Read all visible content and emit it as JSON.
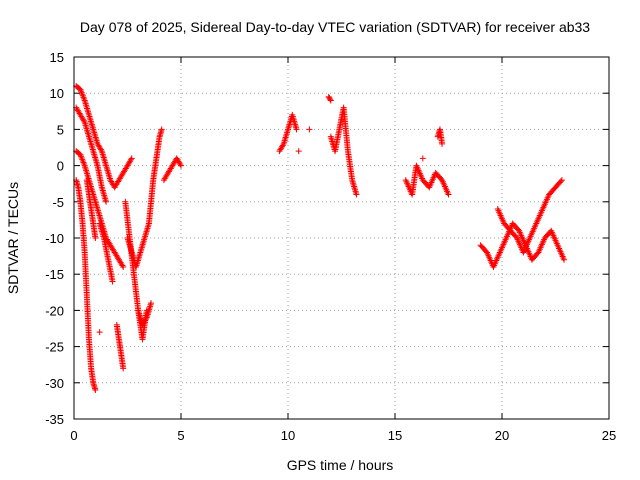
{
  "chart_data": {
    "type": "scatter",
    "title": "Day 078 of 2025, Sidereal Day-to-day VTEC variation (SDTVAR) for receiver ab33",
    "xlabel": "GPS time / hours",
    "ylabel": "SDTVAR / TECUs",
    "xlim": [
      0,
      25
    ],
    "ylim": [
      -35,
      15
    ],
    "xticks": [
      "0",
      "5",
      "10",
      "15",
      "20",
      "25"
    ],
    "yticks": [
      "15",
      "10",
      "5",
      "0",
      "-5",
      "-10",
      "-15",
      "-20",
      "-25",
      "-30",
      "-35"
    ],
    "grid": true,
    "marker": "+",
    "color": "#ff0000",
    "series": [
      {
        "name": "ab33",
        "tracks": [
          {
            "x": [
              0.1,
              0.3,
              0.5,
              0.7,
              0.9,
              1.1,
              1.3,
              1.5,
              1.7,
              1.9,
              2.1,
              2.3,
              2.5,
              2.7
            ],
            "y": [
              11,
              10.5,
              9,
              7,
              5,
              3,
              2,
              0,
              -2,
              -3,
              -2,
              -1,
              0,
              1
            ]
          },
          {
            "x": [
              0.1,
              0.3,
              0.5,
              0.7,
              0.9,
              1.1,
              1.3,
              1.5
            ],
            "y": [
              8,
              7,
              6,
              4,
              2,
              0,
              -3,
              -5
            ]
          },
          {
            "x": [
              0.1,
              0.3,
              0.5,
              0.7,
              0.9,
              1.1,
              1.3,
              1.5,
              1.7,
              1.9,
              2.1,
              2.3
            ],
            "y": [
              2,
              1.5,
              0,
              -2,
              -4,
              -6,
              -8,
              -10,
              -11,
              -12,
              -13,
              -14
            ]
          },
          {
            "x": [
              0.1,
              0.2,
              0.3,
              0.4,
              0.5,
              0.6,
              0.7,
              0.8,
              0.9,
              1.0
            ],
            "y": [
              -2,
              -3,
              -5,
              -8,
              -12,
              -18,
              -24,
              -28,
              -30,
              -31
            ]
          },
          {
            "x": [
              0.6,
              0.7,
              0.8,
              0.9,
              1.0
            ],
            "y": [
              -2,
              -4,
              -6,
              -8,
              -10
            ]
          },
          {
            "x": [
              1.2,
              1.4,
              1.6,
              1.8
            ],
            "y": [
              -8,
              -10,
              -13,
              -16
            ]
          },
          {
            "x": [
              1.2
            ],
            "y": [
              -23
            ]
          },
          {
            "x": [
              2.0,
              2.1,
              2.2,
              2.3
            ],
            "y": [
              -22,
              -24,
              -26,
              -28
            ]
          },
          {
            "x": [
              2.4,
              2.6,
              2.8,
              3.0,
              3.2,
              3.4
            ],
            "y": [
              -5,
              -10,
              -15,
              -20,
              -24,
              -20
            ]
          },
          {
            "x": [
              2.5,
              2.7,
              2.9,
              3.1,
              3.3,
              3.5
            ],
            "y": [
              -10,
              -12,
              -14,
              -12,
              -10,
              -8
            ]
          },
          {
            "x": [
              3.0,
              3.2,
              3.4,
              3.6
            ],
            "y": [
              -20,
              -22,
              -21,
              -19
            ]
          },
          {
            "x": [
              3.5,
              3.6,
              3.7,
              3.8,
              3.9,
              4.0,
              4.1
            ],
            "y": [
              -8,
              -5,
              -2,
              0,
              2,
              4,
              5
            ]
          },
          {
            "x": [
              4.2,
              4.4,
              4.6,
              4.8,
              5.0
            ],
            "y": [
              -2,
              -1,
              0,
              1,
              0
            ]
          },
          {
            "x": [
              9.6,
              9.8,
              10.0,
              10.2,
              10.4
            ],
            "y": [
              2,
              3,
              5,
              7,
              5
            ]
          },
          {
            "x": [
              10.5
            ],
            "y": [
              2
            ]
          },
          {
            "x": [
              11.0
            ],
            "y": [
              5
            ]
          },
          {
            "x": [
              11.9,
              12.0
            ],
            "y": [
              9.5,
              9
            ]
          },
          {
            "x": [
              12.0,
              12.2,
              12.4,
              12.6,
              12.8,
              13.0,
              13.2
            ],
            "y": [
              4,
              2,
              5,
              8,
              2,
              -2,
              -4
            ]
          },
          {
            "x": [
              15.5,
              15.8,
              16.0,
              16.3,
              16.6,
              16.9,
              17.2,
              17.5
            ],
            "y": [
              -2,
              -4,
              0,
              -2,
              -3,
              -1,
              -2,
              -4
            ]
          },
          {
            "x": [
              16.3
            ],
            "y": [
              1
            ]
          },
          {
            "x": [
              17.0,
              17.1,
              17.2
            ],
            "y": [
              4,
              5,
              3
            ]
          },
          {
            "x": [
              19.0,
              19.3,
              19.6,
              19.9,
              20.2,
              20.5,
              20.8,
              21.1,
              21.4,
              21.7,
              22.0,
              22.3,
              22.6,
              22.9
            ],
            "y": [
              -11,
              -12,
              -14,
              -12,
              -10,
              -8,
              -9,
              -11,
              -13,
              -12,
              -10,
              -9,
              -11,
              -13
            ]
          },
          {
            "x": [
              19.8,
              20.1,
              20.4,
              20.7,
              21.0,
              21.3,
              21.6,
              21.9,
              22.2,
              22.5,
              22.8
            ],
            "y": [
              -6,
              -8,
              -9,
              -10,
              -12,
              -10,
              -8,
              -6,
              -4,
              -3,
              -2
            ]
          }
        ]
      }
    ]
  }
}
